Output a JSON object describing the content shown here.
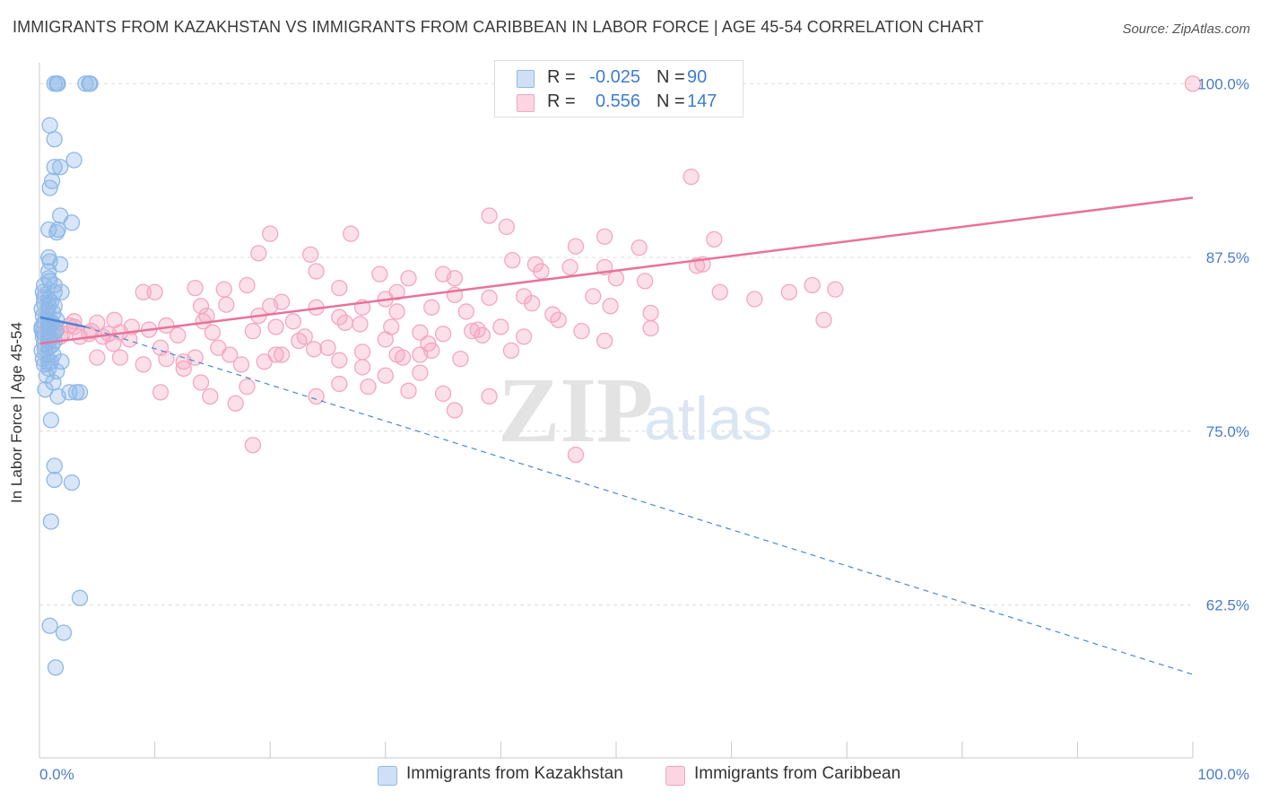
{
  "title": "IMMIGRANTS FROM KAZAKHSTAN VS IMMIGRANTS FROM CARIBBEAN IN LABOR FORCE | AGE 45-54 CORRELATION CHART",
  "source": "Source: ZipAtlas.com",
  "watermark": {
    "zip": "ZIP",
    "atlas": "atlas"
  },
  "legend": {
    "r_label": "R =",
    "n_label": "N =",
    "rows": [
      {
        "r": "-0.025",
        "n": "90",
        "color": "#8fb8e8"
      },
      {
        "r": "0.556",
        "n": "147",
        "color": "#f4a7bf"
      }
    ]
  },
  "bottom_legend": [
    {
      "label": "Immigrants from Kazakhstan",
      "color": "#8fb8e8"
    },
    {
      "label": "Immigrants from Caribbean",
      "color": "#f4a7bf"
    }
  ],
  "chart_data": {
    "type": "scatter",
    "title": "IMMIGRANTS FROM KAZAKHSTAN VS IMMIGRANTS FROM CARIBBEAN IN LABOR FORCE | AGE 45-54 CORRELATION CHART",
    "ylabel": "In Labor Force | Age 45-54",
    "xlabel": "",
    "xlim": [
      0,
      100
    ],
    "ylim": [
      51.5,
      101.5
    ],
    "x_tick_labels": [
      "0.0%",
      "100.0%"
    ],
    "y_ticks": [
      62.5,
      75.0,
      87.5,
      100.0
    ],
    "y_tick_labels": [
      "62.5%",
      "75.0%",
      "87.5%",
      "100.0%"
    ],
    "grid": "horizontal dashed",
    "colors": {
      "blue": "#4a86d8",
      "pink": "#e8729a",
      "tick_label": "#4a7cc9"
    },
    "series": [
      {
        "name": "Immigrants from Kazakhstan",
        "color": "#4a86d8",
        "fill": "#8fb8e8",
        "trend": {
          "solid": [
            [
              0,
              83.2
            ],
            [
              4,
              82.5
            ]
          ],
          "dashed": [
            [
              4,
              82.5
            ],
            [
              100,
              57.5
            ]
          ]
        },
        "points": [
          [
            1.3,
            100
          ],
          [
            1.5,
            100
          ],
          [
            4.0,
            100
          ],
          [
            4.4,
            100
          ],
          [
            1.6,
            100
          ],
          [
            4.3,
            100
          ],
          [
            0.9,
            97
          ],
          [
            1.3,
            96
          ],
          [
            3.0,
            94.5
          ],
          [
            1.3,
            94
          ],
          [
            1.8,
            94
          ],
          [
            1.1,
            93
          ],
          [
            0.9,
            92.5
          ],
          [
            1.8,
            90.5
          ],
          [
            2.8,
            90
          ],
          [
            1.6,
            89.5
          ],
          [
            0.8,
            89.5
          ],
          [
            1.5,
            89.3
          ],
          [
            0.8,
            87.5
          ],
          [
            0.9,
            87.2
          ],
          [
            1.8,
            87
          ],
          [
            0.8,
            86.5
          ],
          [
            0.8,
            86
          ],
          [
            0.9,
            85.8
          ],
          [
            0.4,
            85.5
          ],
          [
            1.3,
            85.5
          ],
          [
            0.3,
            85
          ],
          [
            1.3,
            85
          ],
          [
            1.9,
            85
          ],
          [
            0.5,
            84.8
          ],
          [
            0.8,
            84.5
          ],
          [
            0.4,
            84.2
          ],
          [
            0.8,
            84
          ],
          [
            1.3,
            84
          ],
          [
            0.2,
            83.8
          ],
          [
            0.6,
            83.5
          ],
          [
            1.2,
            83.5
          ],
          [
            0.3,
            83.3
          ],
          [
            0.8,
            83
          ],
          [
            1.5,
            83
          ],
          [
            0.4,
            82.8
          ],
          [
            0.8,
            82.5
          ],
          [
            0.2,
            82.3
          ],
          [
            0.6,
            82
          ],
          [
            1.2,
            82
          ],
          [
            0.3,
            81.8
          ],
          [
            0.8,
            81.5
          ],
          [
            1.3,
            81.5
          ],
          [
            0.4,
            81.3
          ],
          [
            0.8,
            81
          ],
          [
            0.2,
            80.8
          ],
          [
            0.6,
            80.5
          ],
          [
            1.2,
            80.5
          ],
          [
            0.3,
            80.2
          ],
          [
            1.0,
            80
          ],
          [
            1.9,
            80
          ],
          [
            0.4,
            79.8
          ],
          [
            0.8,
            79.5
          ],
          [
            1.5,
            79.3
          ],
          [
            0.6,
            79
          ],
          [
            1.2,
            78.5
          ],
          [
            0.5,
            78
          ],
          [
            1.6,
            77.5
          ],
          [
            2.6,
            77.8
          ],
          [
            3.2,
            77.8
          ],
          [
            3.5,
            77.8
          ],
          [
            1.0,
            75.8
          ],
          [
            1.3,
            72.5
          ],
          [
            1.3,
            71.5
          ],
          [
            2.8,
            71.3
          ],
          [
            1.0,
            68.5
          ],
          [
            3.5,
            63
          ],
          [
            0.9,
            61
          ],
          [
            2.1,
            60.5
          ],
          [
            1.4,
            58
          ],
          [
            0.3,
            82.1
          ],
          [
            0.7,
            82.3
          ],
          [
            1.0,
            82.6
          ],
          [
            0.5,
            81.9
          ],
          [
            0.9,
            81.6
          ],
          [
            1.1,
            82.8
          ],
          [
            0.6,
            83.1
          ],
          [
            1.4,
            82.2
          ],
          [
            0.4,
            84.6
          ],
          [
            1.0,
            84.3
          ],
          [
            0.7,
            83.7
          ],
          [
            0.2,
            82.5
          ],
          [
            0.5,
            80.9
          ],
          [
            1.1,
            81.2
          ],
          [
            0.8,
            79.9
          ]
        ]
      },
      {
        "name": "Immigrants from Caribbean",
        "color": "#e8729a",
        "fill": "#f4a7bf",
        "trend": {
          "solid": [
            [
              0,
              81.3
            ],
            [
              100,
              91.8
            ]
          ]
        },
        "points": [
          [
            100,
            100
          ],
          [
            56.5,
            93.3
          ],
          [
            39,
            90.5
          ],
          [
            40.5,
            89.7
          ],
          [
            20,
            89.2
          ],
          [
            27,
            89.2
          ],
          [
            49,
            89
          ],
          [
            58.5,
            88.8
          ],
          [
            46.5,
            88.3
          ],
          [
            52,
            88.2
          ],
          [
            19,
            87.8
          ],
          [
            23.5,
            87.7
          ],
          [
            41,
            87.3
          ],
          [
            43,
            87
          ],
          [
            49,
            86.8
          ],
          [
            57,
            86.9
          ],
          [
            46,
            86.8
          ],
          [
            24,
            86.5
          ],
          [
            29.5,
            86.3
          ],
          [
            35,
            86.3
          ],
          [
            43.5,
            86.5
          ],
          [
            36,
            86
          ],
          [
            50,
            86
          ],
          [
            32,
            86
          ],
          [
            52.5,
            85.8
          ],
          [
            13.5,
            85.3
          ],
          [
            18,
            85.5
          ],
          [
            16,
            85.2
          ],
          [
            26,
            85.3
          ],
          [
            31,
            85
          ],
          [
            9,
            85
          ],
          [
            10,
            85
          ],
          [
            59,
            85
          ],
          [
            65,
            85
          ],
          [
            67,
            85.5
          ],
          [
            69,
            85.2
          ],
          [
            36,
            84.8
          ],
          [
            42,
            84.7
          ],
          [
            48,
            84.7
          ],
          [
            30,
            84.5
          ],
          [
            39,
            84.6
          ],
          [
            20,
            84
          ],
          [
            14,
            84
          ],
          [
            24,
            83.9
          ],
          [
            28,
            83.9
          ],
          [
            34,
            83.9
          ],
          [
            31,
            83.6
          ],
          [
            37,
            83.6
          ],
          [
            14.5,
            83.3
          ],
          [
            19,
            83.3
          ],
          [
            26,
            83.2
          ],
          [
            22,
            82.9
          ],
          [
            26.5,
            82.8
          ],
          [
            20.5,
            82.5
          ],
          [
            3,
            82.5
          ],
          [
            5,
            82.8
          ],
          [
            6.5,
            83
          ],
          [
            8,
            82.5
          ],
          [
            4.5,
            82.2
          ],
          [
            6,
            82
          ],
          [
            2,
            82
          ],
          [
            3.5,
            81.8
          ],
          [
            5.5,
            81.8
          ],
          [
            7,
            82.1
          ],
          [
            9.5,
            82.3
          ],
          [
            15,
            82.1
          ],
          [
            18.5,
            82.2
          ],
          [
            12,
            81.9
          ],
          [
            23,
            81.8
          ],
          [
            35,
            82
          ],
          [
            37.5,
            82.2
          ],
          [
            42,
            81.8
          ],
          [
            47,
            82.2
          ],
          [
            30.5,
            82.5
          ],
          [
            33,
            82.1
          ],
          [
            38,
            82.3
          ],
          [
            40,
            82.5
          ],
          [
            49,
            81.5
          ],
          [
            53,
            82.4
          ],
          [
            30,
            81.6
          ],
          [
            22.5,
            81.5
          ],
          [
            15.5,
            81
          ],
          [
            25,
            81
          ],
          [
            10.5,
            81
          ],
          [
            16.5,
            80.5
          ],
          [
            20.5,
            80.5
          ],
          [
            28,
            80.7
          ],
          [
            31,
            80.5
          ],
          [
            33,
            80.5
          ],
          [
            34,
            80.8
          ],
          [
            5,
            80.3
          ],
          [
            7,
            80.3
          ],
          [
            11,
            80.2
          ],
          [
            12.5,
            80
          ],
          [
            13.5,
            80.3
          ],
          [
            19.5,
            80
          ],
          [
            26,
            80.1
          ],
          [
            31.5,
            80.3
          ],
          [
            36.5,
            80.2
          ],
          [
            9,
            79.8
          ],
          [
            12.5,
            79.5
          ],
          [
            17.5,
            79.8
          ],
          [
            28,
            79.6
          ],
          [
            30,
            79
          ],
          [
            33,
            79.2
          ],
          [
            14,
            78.5
          ],
          [
            18,
            78.2
          ],
          [
            26,
            78.4
          ],
          [
            28.5,
            78.2
          ],
          [
            32,
            77.9
          ],
          [
            35,
            77.7
          ],
          [
            39,
            77.5
          ],
          [
            10.5,
            77.8
          ],
          [
            14.8,
            77.5
          ],
          [
            24,
            77.5
          ],
          [
            17,
            77
          ],
          [
            36,
            76.5
          ],
          [
            18.5,
            74
          ],
          [
            46.5,
            73.3
          ],
          [
            57.5,
            87
          ],
          [
            62,
            84.5
          ],
          [
            68,
            83
          ],
          [
            49.5,
            84
          ],
          [
            44.5,
            83.4
          ],
          [
            45,
            83
          ],
          [
            53,
            83.5
          ],
          [
            21,
            84.3
          ],
          [
            21,
            80.5
          ],
          [
            4.3,
            82
          ],
          [
            7.8,
            81.6
          ],
          [
            11,
            82.6
          ],
          [
            2.6,
            82.6
          ],
          [
            1.5,
            82.3
          ],
          [
            0.8,
            82.5
          ],
          [
            1.8,
            81.8
          ],
          [
            3,
            82.9
          ],
          [
            6.4,
            81.3
          ],
          [
            14.2,
            82.9
          ],
          [
            16.2,
            84.1
          ],
          [
            23.8,
            80.9
          ],
          [
            27.8,
            82.7
          ],
          [
            33.7,
            81.3
          ],
          [
            38.4,
            81.9
          ],
          [
            40.9,
            80.8
          ],
          [
            42.7,
            84.2
          ]
        ]
      }
    ]
  }
}
